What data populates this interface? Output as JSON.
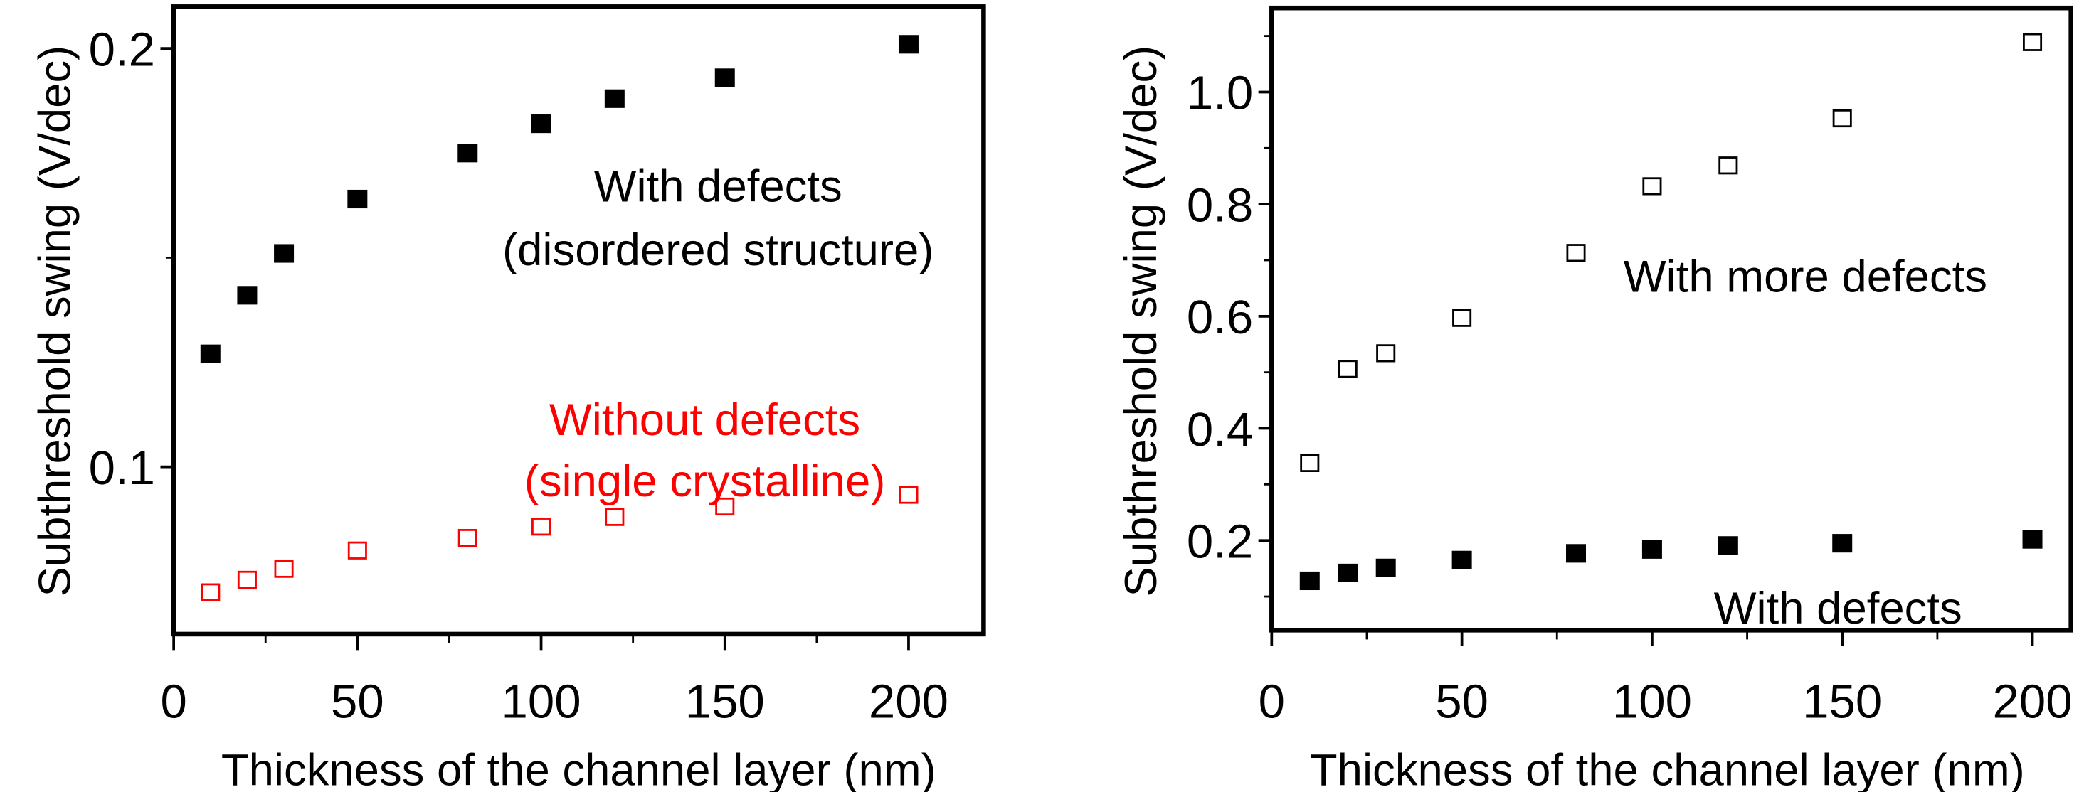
{
  "chart_data": [
    {
      "type": "scatter",
      "xlabel": "Thickness of the channel layer (nm)",
      "ylabel": "Subthreshold swing (V/dec)",
      "xlim": [
        0,
        220
      ],
      "ylim": [
        0.06,
        0.21
      ],
      "xticks": [
        "0",
        "50",
        "100",
        "150",
        "200"
      ],
      "yticks": [
        "0.1",
        "0.2"
      ],
      "grid": false,
      "series": [
        {
          "name": "With defects (disordered structure)",
          "marker": "filled-square",
          "color": "#000000",
          "x": [
            10,
            20,
            30,
            50,
            80,
            100,
            120,
            150,
            200
          ],
          "y": [
            0.127,
            0.141,
            0.151,
            0.164,
            0.175,
            0.182,
            0.188,
            0.193,
            0.201
          ]
        },
        {
          "name": "Without defects (single crystalline)",
          "marker": "open-square",
          "color": "#ff0000",
          "x": [
            10,
            20,
            30,
            50,
            80,
            100,
            120,
            150,
            200
          ],
          "y": [
            0.07,
            0.073,
            0.0756,
            0.08,
            0.083,
            0.0857,
            0.088,
            0.0905,
            0.0933
          ]
        }
      ],
      "annotations": [
        {
          "lines": [
            "With defects",
            "(disordered structure)"
          ],
          "color": "#000000"
        },
        {
          "lines": [
            "Without defects",
            "(single crystalline)"
          ],
          "color": "#ff0000"
        }
      ]
    },
    {
      "type": "scatter",
      "xlabel": "Thickness of the channel layer (nm)",
      "ylabel": "Subthreshold swing (V/dec)",
      "xlim": [
        0,
        210
      ],
      "ylim": [
        0.04,
        1.15
      ],
      "xticks": [
        "0",
        "50",
        "100",
        "150",
        "200"
      ],
      "yticks": [
        "0.2",
        "0.4",
        "0.6",
        "0.8",
        "1.0"
      ],
      "grid": false,
      "series": [
        {
          "name": "With more defects",
          "marker": "open-square",
          "color": "#000000",
          "x": [
            10,
            20,
            30,
            50,
            80,
            100,
            120,
            150,
            200
          ],
          "y": [
            0.338,
            0.506,
            0.534,
            0.597,
            0.713,
            0.832,
            0.869,
            0.953,
            1.089
          ]
        },
        {
          "name": "With defects",
          "marker": "filled-square",
          "color": "#000000",
          "x": [
            10,
            20,
            30,
            50,
            80,
            100,
            120,
            150,
            200
          ],
          "y": [
            0.128,
            0.142,
            0.151,
            0.165,
            0.177,
            0.184,
            0.191,
            0.195,
            0.202
          ]
        }
      ],
      "annotations": [
        {
          "lines": [
            "With more defects"
          ],
          "color": "#000000"
        },
        {
          "lines": [
            "With defects"
          ],
          "color": "#000000"
        }
      ]
    }
  ]
}
